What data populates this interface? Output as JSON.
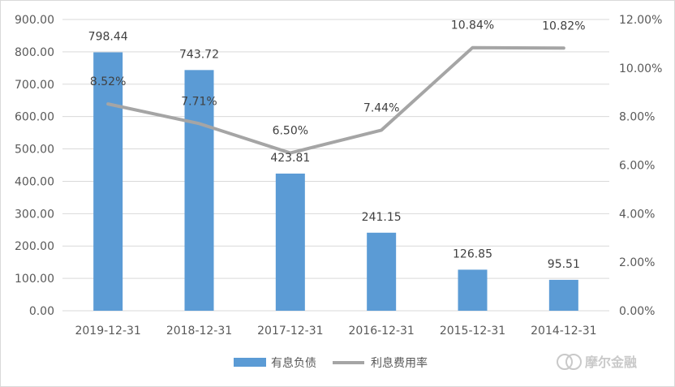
{
  "chart_data": {
    "type": "bar",
    "categories": [
      "2019-12-31",
      "2018-12-31",
      "2017-12-31",
      "2016-12-31",
      "2015-12-31",
      "2014-12-31"
    ],
    "series": [
      {
        "name": "有息负债",
        "type": "bar",
        "axis": "left",
        "color": "#5b9bd5",
        "values": [
          798.44,
          743.72,
          423.81,
          241.15,
          126.85,
          95.51
        ],
        "labels": [
          "798.44",
          "743.72",
          "423.81",
          "241.15",
          "126.85",
          "95.51"
        ]
      },
      {
        "name": "利息费用率",
        "type": "line",
        "axis": "right",
        "color": "#a5a5a5",
        "values": [
          8.52,
          7.71,
          6.5,
          7.44,
          10.84,
          10.82
        ],
        "labels": [
          "8.52%",
          "7.71%",
          "6.50%",
          "7.44%",
          "10.84%",
          "10.82%"
        ]
      }
    ],
    "y_left": {
      "lim": [
        0,
        900
      ],
      "ticks": [
        "0.00",
        "100.00",
        "200.00",
        "300.00",
        "400.00",
        "500.00",
        "600.00",
        "700.00",
        "800.00",
        "900.00"
      ]
    },
    "y_right": {
      "lim": [
        0,
        12
      ],
      "ticks": [
        "0.00%",
        "2.00%",
        "4.00%",
        "6.00%",
        "8.00%",
        "10.00%",
        "12.00%"
      ]
    },
    "grid": true,
    "legend": "bottom-center"
  },
  "watermark": {
    "text": "摩尔金融",
    "color": "#c9c9c9"
  }
}
